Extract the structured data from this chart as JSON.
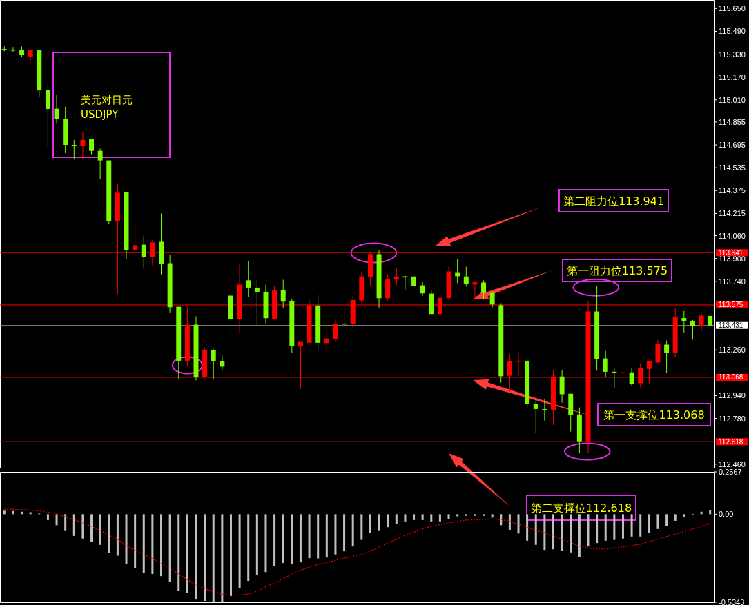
{
  "chart_data": [
    {
      "type": "candlestick",
      "title": "美元对日元",
      "subtitle": "USDJPY",
      "tick_labels": "y",
      "categories": [
        null,
        null,
        null,
        null,
        null,
        null,
        null,
        null,
        null,
        null,
        null,
        null,
        null,
        null,
        null,
        null,
        null,
        null,
        null,
        null,
        null,
        null,
        null,
        null,
        null,
        null,
        null,
        null,
        null,
        null,
        null,
        null,
        null,
        null,
        null,
        null,
        null,
        null,
        null,
        null,
        null,
        null,
        null,
        null,
        null,
        null,
        null,
        null,
        null,
        null,
        null,
        null,
        null,
        null,
        null,
        null,
        null,
        null,
        null,
        null,
        null,
        null,
        null,
        null,
        null,
        null,
        null,
        null,
        null,
        null,
        null,
        null,
        null,
        null,
        null,
        null,
        null,
        null,
        null,
        null,
        null,
        null
      ],
      "ohlc": [
        [
          115.366,
          115.384,
          115.35,
          115.366
        ],
        [
          115.362,
          115.38,
          115.346,
          115.362
        ],
        [
          115.359,
          115.383,
          115.313,
          115.323
        ],
        [
          115.313,
          115.359,
          115.286,
          115.359
        ],
        [
          115.359,
          115.359,
          115.033,
          115.076
        ],
        [
          115.08,
          115.117,
          114.679,
          114.946
        ],
        [
          114.948,
          115.045,
          114.843,
          114.875
        ],
        [
          114.875,
          114.962,
          114.637,
          114.695
        ],
        [
          114.695,
          114.73,
          114.593,
          114.695
        ],
        [
          114.69,
          114.784,
          114.598,
          114.73
        ],
        [
          114.735,
          114.735,
          114.629,
          114.653
        ],
        [
          114.653,
          114.669,
          114.453,
          114.586
        ],
        [
          114.586,
          114.586,
          114.139,
          114.163
        ],
        [
          114.163,
          114.421,
          113.651,
          114.36
        ],
        [
          114.365,
          114.365,
          113.897,
          113.96
        ],
        [
          113.96,
          114.162,
          113.925,
          113.993
        ],
        [
          113.997,
          114.059,
          113.828,
          113.909
        ],
        [
          113.909,
          114.03,
          113.852,
          114.013
        ],
        [
          114.017,
          114.215,
          113.788,
          113.863
        ],
        [
          113.867,
          113.925,
          113.522,
          113.559
        ],
        [
          113.562,
          113.562,
          113.055,
          113.184
        ],
        [
          113.184,
          113.562,
          113.143,
          113.437
        ],
        [
          113.437,
          113.495,
          113.047,
          113.071
        ],
        [
          113.071,
          113.272,
          113.071,
          113.259
        ],
        [
          113.258,
          113.264,
          113.055,
          113.179
        ],
        [
          113.181,
          113.224,
          113.119,
          113.143
        ],
        [
          113.64,
          113.699,
          113.313,
          113.477
        ],
        [
          113.477,
          113.863,
          113.38,
          113.718
        ],
        [
          113.747,
          113.881,
          113.631,
          113.696
        ],
        [
          113.696,
          113.751,
          113.428,
          113.667
        ],
        [
          113.667,
          113.716,
          113.446,
          113.482
        ],
        [
          113.474,
          113.706,
          113.471,
          113.678
        ],
        [
          113.678,
          113.751,
          113.554,
          113.598
        ],
        [
          113.604,
          113.619,
          113.24,
          113.288
        ],
        [
          113.284,
          113.316,
          112.987,
          113.316
        ],
        [
          113.31,
          113.606,
          113.31,
          113.573
        ],
        [
          113.571,
          113.645,
          113.264,
          113.31
        ],
        [
          113.308,
          113.442,
          113.232,
          113.34
        ],
        [
          113.337,
          113.474,
          113.313,
          113.442
        ],
        [
          113.445,
          113.548,
          113.428,
          113.445
        ],
        [
          113.443,
          113.645,
          113.406,
          113.609
        ],
        [
          113.606,
          113.799,
          113.591,
          113.775
        ],
        [
          113.772,
          113.949,
          113.709,
          113.93
        ],
        [
          113.93,
          113.957,
          113.554,
          113.622
        ],
        [
          113.622,
          113.79,
          113.607,
          113.754
        ],
        [
          113.752,
          113.832,
          113.712,
          113.775
        ],
        [
          113.775,
          113.78,
          113.683,
          113.767
        ],
        [
          113.774,
          113.804,
          113.709,
          113.709
        ],
        [
          113.712,
          113.736,
          113.64,
          113.656
        ],
        [
          113.654,
          113.678,
          113.511,
          113.511
        ],
        [
          113.511,
          113.63,
          113.511,
          113.625
        ],
        [
          113.622,
          113.843,
          113.611,
          113.809
        ],
        [
          113.799,
          113.896,
          113.728,
          113.776
        ],
        [
          113.774,
          113.843,
          113.703,
          113.72
        ],
        [
          113.718,
          113.736,
          113.622,
          113.733
        ],
        [
          113.732,
          113.747,
          113.616,
          113.659
        ],
        [
          113.659,
          113.67,
          113.557,
          113.578
        ],
        [
          113.573,
          113.587,
          113.031,
          113.076
        ],
        [
          113.079,
          113.232,
          112.95,
          113.181
        ],
        [
          113.179,
          113.243,
          113.076,
          113.184
        ],
        [
          113.184,
          113.195,
          112.853,
          112.882
        ],
        [
          112.884,
          112.918,
          112.679,
          112.846
        ],
        [
          112.846,
          112.918,
          112.765,
          112.839
        ],
        [
          112.837,
          113.118,
          112.736,
          113.074
        ],
        [
          113.074,
          113.118,
          112.891,
          112.95
        ],
        [
          112.953,
          112.953,
          112.688,
          112.805
        ],
        [
          112.808,
          112.857,
          112.539,
          112.62
        ],
        [
          112.62,
          113.601,
          112.539,
          113.529
        ],
        [
          113.529,
          113.707,
          113.114,
          113.197
        ],
        [
          113.2,
          113.253,
          113.071,
          113.107
        ],
        [
          113.107,
          113.127,
          112.994,
          113.1
        ],
        [
          113.097,
          113.203,
          113.094,
          113.103
        ],
        [
          113.103,
          113.136,
          113.007,
          113.023
        ],
        [
          113.027,
          113.165,
          112.998,
          113.132
        ],
        [
          113.127,
          113.184,
          113.023,
          113.184
        ],
        [
          113.172,
          113.329,
          113.172,
          113.301
        ],
        [
          113.297,
          113.326,
          113.098,
          113.24
        ],
        [
          113.24,
          113.551,
          113.213,
          113.49
        ],
        [
          113.483,
          113.533,
          113.38,
          113.462
        ],
        [
          113.464,
          113.469,
          113.332,
          113.426
        ],
        [
          113.428,
          113.514,
          113.393,
          113.5
        ],
        [
          113.498,
          113.514,
          113.422,
          113.431
        ]
      ],
      "colors": [
        "#7cfc00",
        "#7cfc00",
        "#7cfc00",
        "#ff0000",
        "#7cfc00",
        "#7cfc00",
        "#7cfc00",
        "#7cfc00",
        "#7cfc00",
        "#ff0000",
        "#7cfc00",
        "#7cfc00",
        "#7cfc00",
        "#ff0000",
        "#7cfc00",
        "#ff0000",
        "#7cfc00",
        "#ff0000",
        "#7cfc00",
        "#7cfc00",
        "#7cfc00",
        "#ff0000",
        "#7cfc00",
        "#ff0000",
        "#7cfc00",
        "#7cfc00",
        "#7cfc00",
        "#ff0000",
        "#7cfc00",
        "#7cfc00",
        "#7cfc00",
        "#ff0000",
        "#7cfc00",
        "#7cfc00",
        "#ff0000",
        "#ff0000",
        "#7cfc00",
        "#ff0000",
        "#ff0000",
        "#7cfc00",
        "#ff0000",
        "#ff0000",
        "#ff0000",
        "#7cfc00",
        "#ff0000",
        "#ff0000",
        "#7cfc00",
        "#7cfc00",
        "#7cfc00",
        "#7cfc00",
        "#ff0000",
        "#ff0000",
        "#7cfc00",
        "#7cfc00",
        "#ff0000",
        "#7cfc00",
        "#7cfc00",
        "#7cfc00",
        "#ff0000",
        "#ff0000",
        "#7cfc00",
        "#7cfc00",
        "#7cfc00",
        "#ff0000",
        "#7cfc00",
        "#7cfc00",
        "#7cfc00",
        "#ff0000",
        "#7cfc00",
        "#7cfc00",
        "#7cfc00",
        "#ff0000",
        "#7cfc00",
        "#ff0000",
        "#ff0000",
        "#ff0000",
        "#7cfc00",
        "#ff0000",
        "#7cfc00",
        "#7cfc00",
        "#ff0000",
        "#7cfc00"
      ],
      "ylim": [
        112.44,
        115.69
      ],
      "yticks": [
        {
          "value": 115.65,
          "label": "115.650"
        },
        {
          "value": 115.49,
          "label": "115.490"
        },
        {
          "value": 115.33,
          "label": "115.330"
        },
        {
          "value": 115.17,
          "label": "115.170"
        },
        {
          "value": 115.01,
          "label": "115.010"
        },
        114.855,
        {
          "value": 114.695,
          "label": "114.695"
        },
        114.535,
        114.375,
        114.215,
        {
          "value": 114.06,
          "label": "114.060"
        },
        {
          "value": 113.9,
          "label": "113.900"
        },
        {
          "value": 113.74,
          "label": "113.740"
        },
        {
          "value": 113.26,
          "label": "113.260"
        },
        {
          "value": 112.94,
          "label": "112.940"
        },
        {
          "value": 112.78,
          "label": "112.780"
        },
        {
          "value": 112.46,
          "label": "112.460"
        }
      ],
      "ref_lines": [
        {
          "axis": "y",
          "value": 113.941,
          "label": "113.941",
          "color": "#ff0000"
        },
        {
          "axis": "y",
          "value": 113.575,
          "label": "113.575",
          "color": "#ff0000"
        },
        {
          "axis": "y",
          "value": 113.431,
          "label": "113.431",
          "color": "#a0a0a0"
        },
        {
          "axis": "y",
          "value": 113.068,
          "label": "113.068",
          "color": "#ff0000"
        },
        {
          "axis": "y",
          "value": 112.618,
          "label": "112.618",
          "color": "#ff0000"
        }
      ],
      "annotations": [
        "第二阻力位113.941",
        "第一阻力位113.575",
        "第一支撑位113.068",
        "第二支撑位112.618"
      ]
    },
    {
      "type": "bar",
      "tick_labels": "y",
      "categories": [
        null,
        null,
        null,
        null,
        null,
        null,
        null,
        null,
        null,
        null,
        null,
        null,
        null,
        null,
        null,
        null,
        null,
        null,
        null,
        null,
        null,
        null,
        null,
        null,
        null,
        null,
        null,
        null,
        null,
        null,
        null,
        null,
        null,
        null,
        null,
        null,
        null,
        null,
        null,
        null,
        null,
        null,
        null,
        null,
        null,
        null,
        null,
        null,
        null,
        null,
        null,
        null,
        null,
        null,
        null,
        null,
        null,
        null,
        null,
        null,
        null,
        null,
        null,
        null,
        null,
        null,
        null,
        null,
        null,
        null,
        null,
        null,
        null,
        null,
        null,
        null,
        null,
        null,
        null,
        null,
        null,
        null
      ],
      "series": [
        {
          "type": "bar",
          "color": "#c0c0c0",
          "values": [
            0.021,
            0.019,
            0.015,
            0.012,
            0.004,
            -0.036,
            -0.067,
            -0.102,
            -0.132,
            -0.148,
            -0.167,
            -0.186,
            -0.234,
            -0.252,
            -0.301,
            -0.328,
            -0.355,
            -0.363,
            -0.376,
            -0.411,
            -0.467,
            -0.478,
            -0.518,
            -0.526,
            -0.53,
            -0.534,
            -0.497,
            -0.449,
            -0.405,
            -0.369,
            -0.351,
            -0.315,
            -0.296,
            -0.3,
            -0.292,
            -0.267,
            -0.269,
            -0.263,
            -0.244,
            -0.225,
            -0.196,
            -0.156,
            -0.113,
            -0.102,
            -0.079,
            -0.06,
            -0.044,
            -0.036,
            -0.036,
            -0.044,
            -0.044,
            -0.029,
            -0.013,
            -0.01,
            -0.01,
            -0.01,
            -0.021,
            -0.067,
            -0.098,
            -0.117,
            -0.161,
            -0.186,
            -0.217,
            -0.213,
            -0.221,
            -0.232,
            -0.259,
            -0.196,
            -0.175,
            -0.161,
            -0.156,
            -0.148,
            -0.136,
            -0.136,
            -0.113,
            -0.09,
            -0.071,
            -0.04,
            -0.017,
            0,
            0.015,
            0.023
          ]
        }
      ],
      "ylim": [
        -0.5343,
        0.2567
      ],
      "yticks": [
        {
          "value": 0.2567,
          "label": "0.2567"
        },
        {
          "value": 0,
          "label": "0.00"
        },
        {
          "value": -0.5343,
          "label": "-0.5343"
        }
      ]
    },
    {
      "type": "line",
      "tick_labels": false,
      "categories": [
        null,
        null,
        null,
        null,
        null,
        null,
        null,
        null,
        null,
        null,
        null,
        null,
        null,
        null,
        null,
        null,
        null,
        null,
        null,
        null,
        null,
        null,
        null,
        null,
        null,
        null,
        null,
        null,
        null,
        null,
        null,
        null,
        null,
        null,
        null,
        null,
        null,
        null,
        null,
        null,
        null,
        null,
        null,
        null,
        null,
        null,
        null,
        null,
        null,
        null,
        null,
        null,
        null,
        null,
        null,
        null,
        null,
        null,
        null,
        null,
        null,
        null,
        null,
        null,
        null,
        null,
        null,
        null,
        null,
        null,
        null,
        null,
        null,
        null,
        null,
        null,
        null,
        null,
        null,
        null,
        null,
        null
      ],
      "series": [
        {
          "type": "line",
          "color": "#ff0000",
          "line_style": "dotted",
          "values": [
            0.031,
            0.029,
            0.027,
            0.025,
            0.021,
            0.012,
            0.002,
            -0.017,
            -0.033,
            -0.052,
            -0.075,
            -0.098,
            -0.129,
            -0.152,
            -0.19,
            -0.221,
            -0.244,
            -0.271,
            -0.298,
            -0.328,
            -0.363,
            -0.397,
            -0.428,
            -0.451,
            -0.47,
            -0.486,
            -0.492,
            -0.49,
            -0.484,
            -0.468,
            -0.44,
            -0.417,
            -0.392,
            -0.363,
            -0.34,
            -0.321,
            -0.305,
            -0.294,
            -0.28,
            -0.267,
            -0.255,
            -0.244,
            -0.225,
            -0.2,
            -0.175,
            -0.152,
            -0.129,
            -0.109,
            -0.09,
            -0.075,
            -0.063,
            -0.052,
            -0.044,
            -0.036,
            -0.033,
            -0.031,
            -0.029,
            -0.033,
            -0.044,
            -0.06,
            -0.079,
            -0.098,
            -0.113,
            -0.132,
            -0.152,
            -0.171,
            -0.194,
            -0.205,
            -0.211,
            -0.211,
            -0.205,
            -0.198,
            -0.19,
            -0.182,
            -0.167,
            -0.152,
            -0.136,
            -0.121,
            -0.106,
            -0.09,
            -0.075,
            -0.056
          ]
        }
      ],
      "ylim": [
        -0.5343,
        0.2567
      ]
    }
  ]
}
